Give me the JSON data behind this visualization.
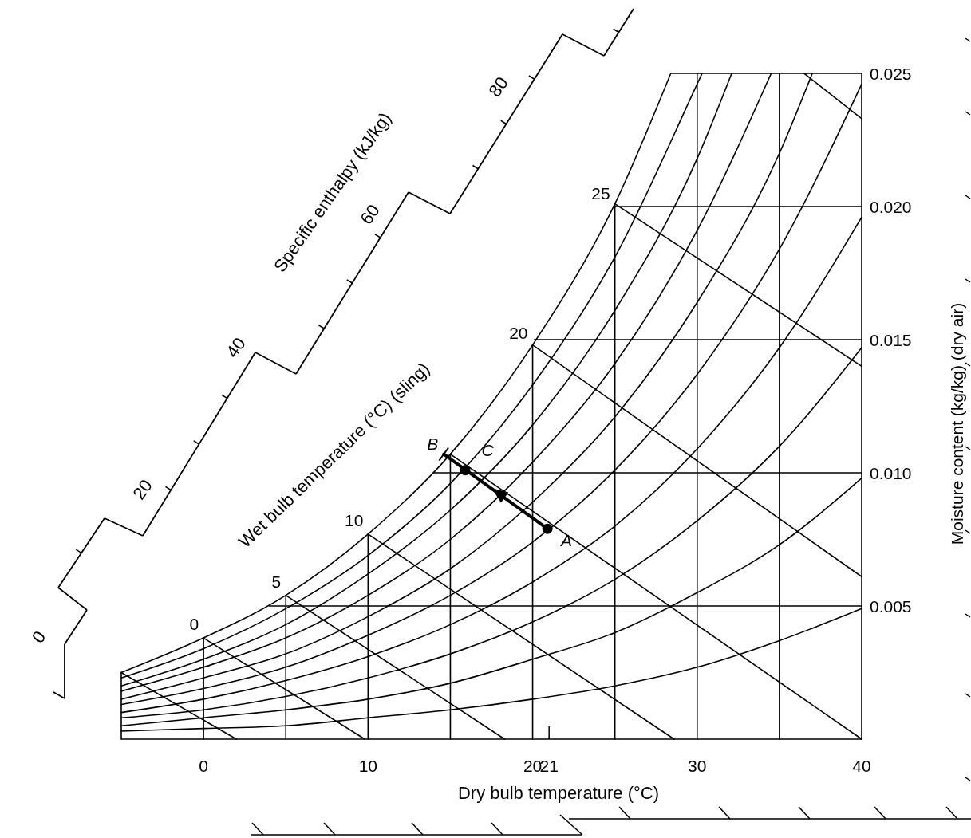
{
  "chart_data": {
    "type": "line",
    "xlabel": "Dry bulb temperature (°C)",
    "ylabel": "Moisture content (kg/kg) (dry air)",
    "xlim": [
      -5,
      40
    ],
    "xticks": [
      0,
      10,
      20,
      21,
      30,
      40
    ],
    "ylim": [
      0,
      0.025
    ],
    "yticks": [
      {
        "value": 0.005,
        "label": "0.005"
      },
      {
        "value": 0.01,
        "label": "0.010"
      },
      {
        "value": 0.015,
        "label": "0.015"
      },
      {
        "value": 0.02,
        "label": "0.020"
      },
      {
        "value": 0.025,
        "label": "0.025"
      }
    ],
    "tick_labels": "xy",
    "series": [
      {
        "color": "#000000",
        "x": [
          -5,
          0,
          5,
          10,
          15,
          20,
          25,
          30,
          35,
          40
        ],
        "values": [
          0.0003,
          0.0004,
          0.0005,
          0.0008,
          0.0011,
          0.0015,
          0.002,
          0.0027,
          0.0037,
          0.0049
        ]
      },
      {
        "color": "#000000",
        "x": [
          -5,
          0,
          5,
          10,
          15,
          20,
          25,
          30,
          35,
          40
        ],
        "values": [
          0.0005,
          0.0008,
          0.0011,
          0.0015,
          0.0021,
          0.003,
          0.004,
          0.0055,
          0.0073,
          0.0098
        ]
      },
      {
        "color": "#000000",
        "x": [
          -5,
          0,
          5,
          10,
          15,
          20,
          25,
          30,
          35,
          40
        ],
        "values": [
          0.0008,
          0.0011,
          0.0016,
          0.0023,
          0.0032,
          0.0044,
          0.006,
          0.0082,
          0.011,
          0.0147
        ]
      },
      {
        "color": "#000000",
        "x": [
          -5,
          0,
          5,
          10,
          15,
          20,
          25,
          30,
          35,
          40
        ],
        "values": [
          0.001,
          0.0015,
          0.0022,
          0.0031,
          0.0043,
          0.0059,
          0.008,
          0.0109,
          0.0147,
          0.0196
        ]
      },
      {
        "color": "#000000",
        "x": [
          -5,
          0,
          5,
          10,
          15,
          20,
          25,
          30,
          35,
          40
        ],
        "values": [
          0.0013,
          0.0019,
          0.0027,
          0.0039,
          0.0054,
          0.0074,
          0.0101,
          0.0137,
          0.0184,
          0.0246
        ]
      },
      {
        "color": "#000000",
        "x": [
          -5,
          0,
          5,
          10,
          15,
          20,
          25,
          30,
          35,
          37
        ],
        "values": [
          0.0015,
          0.0023,
          0.0032,
          0.0046,
          0.0064,
          0.0089,
          0.0121,
          0.0164,
          0.022,
          0.025
        ]
      },
      {
        "color": "#000000",
        "x": [
          -5,
          0,
          5,
          10,
          15,
          20,
          25,
          30,
          34.5
        ],
        "values": [
          0.0018,
          0.0027,
          0.0038,
          0.0054,
          0.0075,
          0.0104,
          0.0141,
          0.0191,
          0.025
        ]
      },
      {
        "color": "#000000",
        "x": [
          -5,
          0,
          5,
          10,
          15,
          20,
          25,
          30,
          32.1
        ],
        "values": [
          0.002,
          0.003,
          0.0043,
          0.0062,
          0.0086,
          0.0118,
          0.0161,
          0.0218,
          0.025
        ]
      },
      {
        "color": "#000000",
        "x": [
          -5,
          0,
          5,
          10,
          15,
          20,
          25,
          30,
          30.3
        ],
        "values": [
          0.0023,
          0.0034,
          0.0049,
          0.0069,
          0.0096,
          0.0133,
          0.0181,
          0.0246,
          0.025
        ]
      },
      {
        "color": "#000000",
        "x": [
          -5,
          0,
          5,
          10,
          15,
          20,
          25,
          28.4
        ],
        "values": [
          0.0025,
          0.0038,
          0.0054,
          0.0077,
          0.0107,
          0.0148,
          0.0201,
          0.025
        ]
      },
      {
        "color": "#000000",
        "x": [
          -5,
          -5
        ],
        "values": [
          0,
          0.0025
        ]
      },
      {
        "color": "#000000",
        "x": [
          0,
          0
        ],
        "values": [
          0,
          0.0038
        ]
      },
      {
        "color": "#000000",
        "x": [
          5,
          5
        ],
        "values": [
          0,
          0.0054
        ]
      },
      {
        "color": "#000000",
        "x": [
          10,
          10
        ],
        "values": [
          0,
          0.0077
        ]
      },
      {
        "color": "#000000",
        "x": [
          15,
          15
        ],
        "values": [
          0,
          0.0107
        ]
      },
      {
        "color": "#000000",
        "x": [
          20,
          20
        ],
        "values": [
          0,
          0.0148
        ]
      },
      {
        "color": "#000000",
        "x": [
          25,
          25
        ],
        "values": [
          0,
          0.0201
        ]
      },
      {
        "color": "#000000",
        "x": [
          30,
          30
        ],
        "values": [
          0,
          0.025
        ]
      },
      {
        "color": "#000000",
        "x": [
          35,
          35
        ],
        "values": [
          0,
          0.025
        ]
      },
      {
        "color": "#000000",
        "x": [
          40,
          40
        ],
        "values": [
          0,
          0.025
        ]
      },
      {
        "color": "#000000",
        "x": [
          4,
          40
        ],
        "values": [
          0.005,
          0.005
        ]
      },
      {
        "color": "#000000",
        "x": [
          14,
          40
        ],
        "values": [
          0.01,
          0.01
        ]
      },
      {
        "color": "#000000",
        "x": [
          20.1,
          40
        ],
        "values": [
          0.015,
          0.015
        ]
      },
      {
        "color": "#000000",
        "x": [
          24.9,
          40
        ],
        "values": [
          0.02,
          0.02
        ]
      },
      {
        "color": "#000000",
        "x": [
          28.4,
          40
        ],
        "values": [
          0.025,
          0.025
        ]
      },
      {
        "color": "#000000",
        "x": [
          -5,
          2
        ],
        "values": [
          0.0025,
          0
        ]
      },
      {
        "color": "#000000",
        "x": [
          0,
          9.8
        ],
        "values": [
          0.0038,
          0
        ]
      },
      {
        "color": "#000000",
        "x": [
          5,
          18.3
        ],
        "values": [
          0.0054,
          0
        ]
      },
      {
        "color": "#000000",
        "x": [
          10,
          28.6
        ],
        "values": [
          0.0077,
          0
        ]
      },
      {
        "color": "#000000",
        "x": [
          15,
          40
        ],
        "values": [
          0.0107,
          0
        ]
      },
      {
        "color": "#000000",
        "x": [
          20,
          40
        ],
        "values": [
          0.0148,
          0.0061
        ]
      },
      {
        "color": "#000000",
        "x": [
          25,
          40
        ],
        "values": [
          0.0201,
          0.014
        ]
      },
      {
        "color": "#000000",
        "x": [
          36.5,
          40
        ],
        "values": [
          0.025,
          0.0233
        ]
      },
      {
        "color": "#000000",
        "x": [
          14.6,
          20.9
        ],
        "values": [
          0.0107,
          0.0079
        ]
      },
      {
        "type": "scatter",
        "marker": "circle",
        "color": "#000000",
        "x": [
          15.9,
          20.9
        ],
        "values": [
          0.0101,
          0.0079
        ]
      }
    ],
    "annotations": [
      {
        "text": "0",
        "x": 0,
        "y": 0.0038
      },
      {
        "text": "5",
        "x": 5,
        "y": 0.0054
      },
      {
        "text": "10",
        "x": 10,
        "y": 0.0077
      },
      {
        "text": "20",
        "x": 20,
        "y": 0.0148
      },
      {
        "text": "25",
        "x": 25,
        "y": 0.0201
      },
      {
        "text": "A",
        "x": 20.9,
        "y": 0.0079
      },
      {
        "text": "B",
        "x": 14.6,
        "y": 0.0107
      },
      {
        "text": "C",
        "x": 15.9,
        "y": 0.0101
      },
      "Wet bulb temperature (°C) (sling)",
      "Specific enthalpy (kJ/kg)",
      "0",
      "20",
      "40",
      "60",
      "80"
    ]
  }
}
